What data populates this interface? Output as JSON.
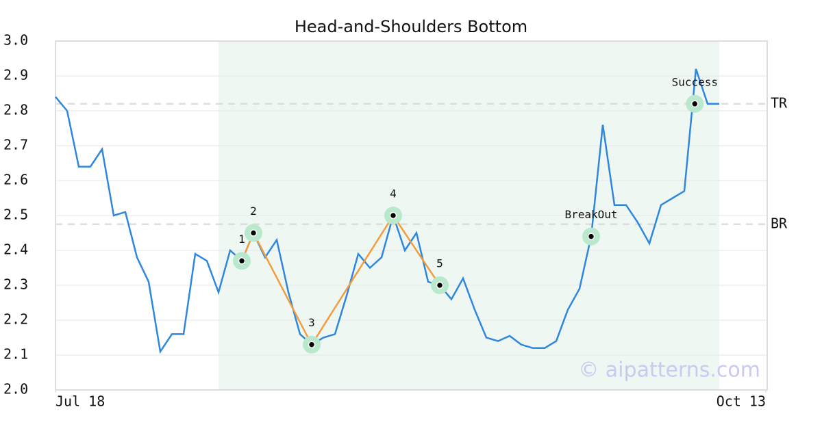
{
  "chart_data": {
    "type": "line",
    "title": "Head-and-Shoulders Bottom",
    "x": [
      0,
      1,
      2,
      3,
      4,
      5,
      6,
      7,
      8,
      9,
      10,
      11,
      12,
      13,
      14,
      15,
      16,
      17,
      18,
      19,
      20,
      21,
      22,
      23,
      24,
      25,
      26,
      27,
      28,
      29,
      30,
      31,
      32,
      33,
      34,
      35,
      36,
      37,
      38,
      39,
      40,
      41,
      42,
      43,
      44,
      45,
      46,
      47,
      48,
      49,
      50,
      51,
      52,
      53,
      54,
      55,
      56,
      57
    ],
    "series": [
      {
        "color": "#2e86de",
        "values": [
          2.84,
          2.8,
          2.64,
          2.64,
          2.69,
          2.5,
          2.51,
          2.38,
          2.31,
          2.11,
          2.16,
          2.16,
          2.39,
          2.37,
          2.28,
          2.4,
          2.37,
          2.45,
          2.38,
          2.43,
          2.28,
          2.16,
          2.13,
          2.15,
          2.16,
          2.27,
          2.39,
          2.35,
          2.38,
          2.5,
          2.4,
          2.45,
          2.31,
          2.3,
          2.26,
          2.32,
          2.23,
          2.15,
          2.14,
          2.155,
          2.13,
          2.12,
          2.12,
          2.14,
          2.23,
          2.29,
          2.44,
          2.76,
          2.53,
          2.53,
          2.48,
          2.42,
          2.53,
          2.55,
          2.57,
          2.92,
          2.82,
          2.82
        ]
      }
    ],
    "pattern_points": {
      "x": [
        16,
        17,
        22,
        29,
        33,
        46,
        54.9
      ],
      "values": [
        2.37,
        2.45,
        2.13,
        2.5,
        2.3,
        2.44,
        2.82
      ],
      "labels": [
        "1",
        "2",
        "3",
        "4",
        "5",
        "BreakOut",
        "Success"
      ],
      "color": "#f39c3c",
      "halo_color": "#b9e8cd"
    },
    "levels": [
      {
        "label": "TR",
        "value": 2.82
      },
      {
        "label": "BR",
        "value": 2.475
      }
    ],
    "highlight_range": [
      14,
      57
    ],
    "highlight_color": "#eef7f2",
    "xlim": [
      0,
      61
    ],
    "xticks": [
      {
        "value": 0,
        "label": "Jul 18"
      },
      {
        "value": 61,
        "label": "Oct 13"
      }
    ],
    "ylim": [
      2,
      3
    ],
    "yticks": [
      {
        "value": 2,
        "label": "2.0"
      },
      2.1,
      2.2,
      2.3,
      2.4,
      2.5,
      2.6,
      2.7,
      2.8,
      2.9,
      {
        "value": 3,
        "label": "3.0"
      }
    ],
    "grid": true,
    "watermark": "© aipatterns.com"
  }
}
